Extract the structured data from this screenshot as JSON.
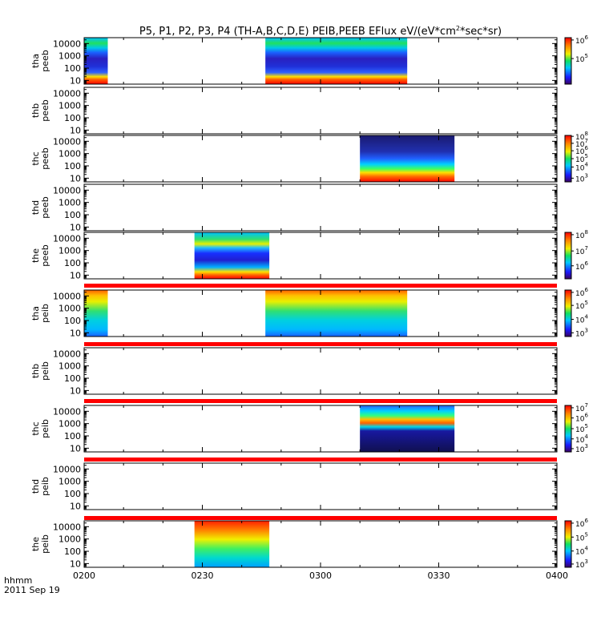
{
  "title": "P5, P1, P2, P3, P4 (TH-A,B,C,D,E) PEIB,PEEB EFlux eV/(eV*cm",
  "title_sup": "2",
  "title_tail": "*sec*sr)",
  "time_label": "hhmm",
  "date_label": "2011 Sep 19",
  "x_ticks": [
    "0200",
    "0230",
    "0300",
    "0330",
    "0400"
  ],
  "y_tick_labels": [
    "10",
    "100",
    "1000",
    "10000"
  ],
  "chart_data": {
    "type": "heatmap",
    "x_range": [
      "0200",
      "0400"
    ],
    "x_unit": "hhmm",
    "y_scale": "log",
    "y_range": [
      5,
      30000
    ],
    "panels": [
      {
        "label1": "tha",
        "label2": "peeb",
        "data_intervals": [
          [
            "0200",
            "0206"
          ],
          [
            "0246",
            "0322"
          ]
        ],
        "colorbar": {
          "ticks": [
            {
              "base": "10",
              "exp": "6",
              "pos": 0.05
            },
            {
              "base": "10",
              "exp": "5",
              "pos": 0.45
            }
          ]
        }
      },
      {
        "label1": "thb",
        "label2": "peeb",
        "data_intervals": [],
        "colorbar": null
      },
      {
        "label1": "thc",
        "label2": "peeb",
        "data_intervals": [
          [
            "0310",
            "0334"
          ]
        ],
        "colorbar": {
          "ticks": [
            {
              "base": "10",
              "exp": "8",
              "pos": 0.02
            },
            {
              "base": "10",
              "exp": "7",
              "pos": 0.17
            },
            {
              "base": "10",
              "exp": "6",
              "pos": 0.33
            },
            {
              "base": "10",
              "exp": "5",
              "pos": 0.5
            },
            {
              "base": "10",
              "exp": "4",
              "pos": 0.68
            },
            {
              "base": "10",
              "exp": "3",
              "pos": 0.92
            }
          ]
        }
      },
      {
        "label1": "thd",
        "label2": "peeb",
        "data_intervals": [],
        "colorbar": null
      },
      {
        "label1": "the",
        "label2": "peeb",
        "data_intervals": [
          [
            "0228",
            "0247"
          ]
        ],
        "colorbar": {
          "ticks": [
            {
              "base": "10",
              "exp": "8",
              "pos": 0.05
            },
            {
              "base": "10",
              "exp": "7",
              "pos": 0.4
            },
            {
              "base": "10",
              "exp": "6",
              "pos": 0.72
            }
          ]
        }
      },
      {
        "label1": "tha",
        "label2": "peib",
        "data_intervals": [
          [
            "0200",
            "0206"
          ],
          [
            "0246",
            "0322"
          ]
        ],
        "colorbar": {
          "ticks": [
            {
              "base": "10",
              "exp": "6",
              "pos": 0.05
            },
            {
              "base": "10",
              "exp": "5",
              "pos": 0.33
            },
            {
              "base": "10",
              "exp": "4",
              "pos": 0.63
            },
            {
              "base": "10",
              "exp": "3",
              "pos": 0.92
            }
          ]
        }
      },
      {
        "label1": "thb",
        "label2": "peib",
        "data_intervals": [],
        "colorbar": null
      },
      {
        "label1": "thc",
        "label2": "peib",
        "data_intervals": [
          [
            "0310",
            "0334"
          ]
        ],
        "colorbar": {
          "ticks": [
            {
              "base": "10",
              "exp": "7",
              "pos": 0.05
            },
            {
              "base": "10",
              "exp": "6",
              "pos": 0.27
            },
            {
              "base": "10",
              "exp": "5",
              "pos": 0.5
            },
            {
              "base": "10",
              "exp": "4",
              "pos": 0.72
            },
            {
              "base": "10",
              "exp": "3",
              "pos": 0.93
            }
          ]
        }
      },
      {
        "label1": "thd",
        "label2": "peib",
        "data_intervals": [],
        "colorbar": null
      },
      {
        "label1": "the",
        "label2": "peib",
        "data_intervals": [
          [
            "0228",
            "0247"
          ]
        ],
        "colorbar": {
          "ticks": [
            {
              "base": "10",
              "exp": "6",
              "pos": 0.05
            },
            {
              "base": "10",
              "exp": "5",
              "pos": 0.35
            },
            {
              "base": "10",
              "exp": "4",
              "pos": 0.65
            },
            {
              "base": "10",
              "exp": "3",
              "pos": 0.93
            }
          ]
        }
      }
    ]
  }
}
